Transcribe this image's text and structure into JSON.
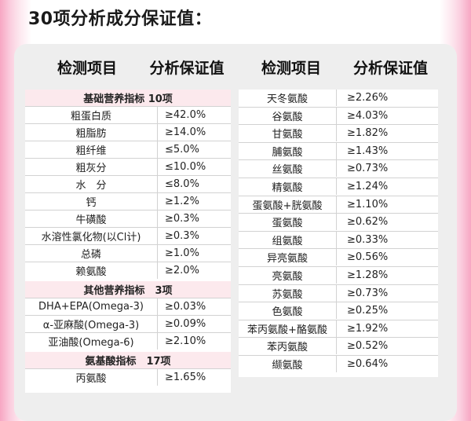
{
  "title": "30项分析成分保证值：",
  "headers": {
    "item": "检测项目",
    "value": "分析保证值"
  },
  "left": {
    "sections": [
      {
        "title": "基础营养指标 10项",
        "rows": [
          {
            "name": "粗蛋白质",
            "value": "≥42.0%"
          },
          {
            "name": "粗脂肪",
            "value": "≥14.0%"
          },
          {
            "name": "粗纤维",
            "value": "≤5.0%"
          },
          {
            "name": "粗灰分",
            "value": "≤10.0%"
          },
          {
            "name": "水　分",
            "value": "≤8.0%"
          },
          {
            "name": "钙",
            "value": "≥1.2%"
          },
          {
            "name": "牛磺酸",
            "value": "≥0.3%"
          },
          {
            "name": "水溶性氯化物(以Cl计)",
            "value": "≥0.3%"
          },
          {
            "name": "总磷",
            "value": "≥1.0%"
          },
          {
            "name": "赖氨酸",
            "value": "≥2.0%"
          }
        ]
      },
      {
        "title": "其他营养指标　3项",
        "rows": [
          {
            "name": "DHA+EPA(Omega-3)",
            "value": "≥0.03%"
          },
          {
            "name": "α-亚麻酸(Omega-3)",
            "value": "≥0.09%"
          },
          {
            "name": "亚油酸(Omega-6)",
            "value": "≥2.10%"
          }
        ]
      },
      {
        "title": "氨基酸指标　17项",
        "rows": [
          {
            "name": "丙氨酸",
            "value": "≥1.65%"
          }
        ]
      }
    ]
  },
  "right": {
    "rows": [
      {
        "name": "天冬氨酸",
        "value": "≥2.26%"
      },
      {
        "name": "谷氨酸",
        "value": "≥4.03%"
      },
      {
        "name": "甘氨酸",
        "value": "≥1.82%"
      },
      {
        "name": "脯氨酸",
        "value": "≥1.43%"
      },
      {
        "name": "丝氨酸",
        "value": "≥0.73%"
      },
      {
        "name": "精氨酸",
        "value": "≥1.24%"
      },
      {
        "name": "蛋氨酸+胱氨酸",
        "value": "≥1.10%"
      },
      {
        "name": "蛋氨酸",
        "value": "≥0.62%"
      },
      {
        "name": "组氨酸",
        "value": "≥0.33%"
      },
      {
        "name": "异亮氨酸",
        "value": "≥0.56%"
      },
      {
        "name": "亮氨酸",
        "value": "≥1.28%"
      },
      {
        "name": "苏氨酸",
        "value": "≥0.73%"
      },
      {
        "name": "色氨酸",
        "value": "≥0.25%"
      },
      {
        "name": "苯丙氨酸+酪氨酸",
        "value": "≥1.92%"
      },
      {
        "name": "苯丙氨酸",
        "value": "≥0.52%"
      },
      {
        "name": "缬氨酸",
        "value": "≥0.64%"
      }
    ]
  }
}
